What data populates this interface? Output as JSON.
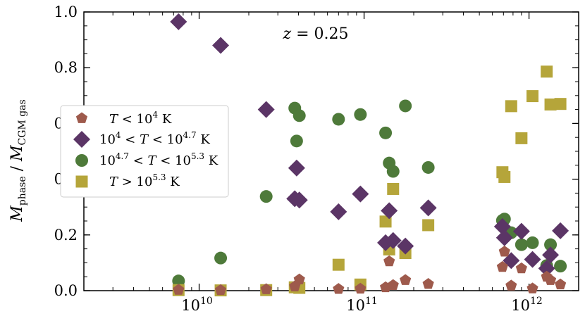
{
  "chart_data": {
    "type": "scatter",
    "annotation": {
      "z_symbol": "z",
      "equals": " = ",
      "value": "0.25"
    },
    "ylabel": {
      "main": "M",
      "sub1": "phase",
      "slash": " / ",
      "main2": "M",
      "sub2": "CGM gas"
    },
    "xscale": "log",
    "xlim": [
      2000000000,
      2000000000000
    ],
    "ylim": [
      0,
      1.0
    ],
    "yticks": [
      0.0,
      0.2,
      0.4,
      0.6,
      0.8,
      1.0
    ],
    "ytick_labels": [
      "0.0",
      "0.2",
      "0.4",
      "0.6",
      "0.8",
      "1.0"
    ],
    "xticks": [
      {
        "value": 10000000000,
        "base": "10",
        "exp": "10"
      },
      {
        "value": 100000000000,
        "base": "10",
        "exp": "11"
      },
      {
        "value": 1000000000000,
        "base": "10",
        "exp": "12"
      }
    ],
    "grid": false,
    "legend_position": "center-left",
    "series": [
      {
        "name": "T < 10^4 K",
        "legend": {
          "a": "T",
          "b": " < 10",
          "sup": "4",
          "c": " K"
        },
        "marker": "pentagon",
        "color": "#9e5a4c",
        "x": [
          7500000000.0,
          13500000000.0,
          25500000000.0,
          38000000000.0,
          40500000000.0,
          70000000000.0,
          95000000000.0,
          135000000000.0,
          142000000000.0,
          150000000000.0,
          178000000000.0,
          245000000000.0,
          690000000000.0,
          710000000000.0,
          780000000000.0,
          900000000000.0,
          1050000000000.0,
          1280000000000.0,
          1350000000000.0,
          1550000000000.0
        ],
        "y": [
          0.003,
          0.002,
          0.005,
          0.015,
          0.04,
          0.006,
          0.007,
          0.012,
          0.105,
          0.02,
          0.038,
          0.024,
          0.085,
          0.14,
          0.018,
          0.08,
          0.008,
          0.05,
          0.038,
          0.022
        ]
      },
      {
        "name": "10^4 < T < 10^4.7 K",
        "legend": {
          "a": "10",
          "asup": "4",
          "b": " < ",
          "t": "T",
          "c": " < 10",
          "csup": "4.7",
          "d": " K"
        },
        "marker": "diamond",
        "color": "#5b3566",
        "x": [
          7500000000.0,
          13500000000.0,
          25500000000.0,
          38000000000.0,
          39000000000.0,
          40500000000.0,
          70000000000.0,
          95000000000.0,
          135000000000.0,
          142000000000.0,
          150000000000.0,
          178000000000.0,
          245000000000.0,
          690000000000.0,
          710000000000.0,
          780000000000.0,
          900000000000.0,
          1050000000000.0,
          1280000000000.0,
          1350000000000.0,
          1550000000000.0
        ],
        "y": [
          0.965,
          0.88,
          0.65,
          0.33,
          0.44,
          0.325,
          0.283,
          0.347,
          0.172,
          0.287,
          0.18,
          0.16,
          0.297,
          0.23,
          0.19,
          0.108,
          0.213,
          0.112,
          0.08,
          0.128,
          0.215
        ]
      },
      {
        "name": "10^4.7 < T < 10^5.3 K",
        "legend": {
          "a": "10",
          "asup": "4.7",
          "b": " < ",
          "t": "T",
          "c": " < 10",
          "csup": "5.3",
          "d": " K"
        },
        "marker": "circle",
        "color": "#4e7a3a",
        "x": [
          7500000000.0,
          13500000000.0,
          25500000000.0,
          38000000000.0,
          39000000000.0,
          40500000000.0,
          70000000000.0,
          95000000000.0,
          135000000000.0,
          142000000000.0,
          150000000000.0,
          178000000000.0,
          245000000000.0,
          690000000000.0,
          710000000000.0,
          780000000000.0,
          900000000000.0,
          1050000000000.0,
          1280000000000.0,
          1350000000000.0,
          1550000000000.0
        ],
        "y": [
          0.035,
          0.117,
          0.338,
          0.655,
          0.537,
          0.628,
          0.615,
          0.632,
          0.566,
          0.458,
          0.428,
          0.663,
          0.442,
          0.252,
          0.257,
          0.208,
          0.165,
          0.172,
          0.09,
          0.165,
          0.088
        ]
      },
      {
        "name": "T > 10^5.3 K",
        "legend": {
          "a": "T",
          "b": " > 10",
          "sup": "5.3",
          "c": " K"
        },
        "marker": "square",
        "color": "#b5a53a",
        "x": [
          7500000000.0,
          13500000000.0,
          25500000000.0,
          38000000000.0,
          40500000000.0,
          70000000000.0,
          95000000000.0,
          135000000000.0,
          142000000000.0,
          150000000000.0,
          178000000000.0,
          245000000000.0,
          690000000000.0,
          710000000000.0,
          780000000000.0,
          900000000000.0,
          1050000000000.0,
          1280000000000.0,
          1350000000000.0,
          1550000000000.0
        ],
        "y": [
          0.002,
          0.001,
          0.002,
          0.012,
          0.01,
          0.093,
          0.022,
          0.248,
          0.148,
          0.365,
          0.135,
          0.235,
          0.425,
          0.408,
          0.662,
          0.547,
          0.698,
          0.786,
          0.668,
          0.67
        ]
      }
    ]
  }
}
